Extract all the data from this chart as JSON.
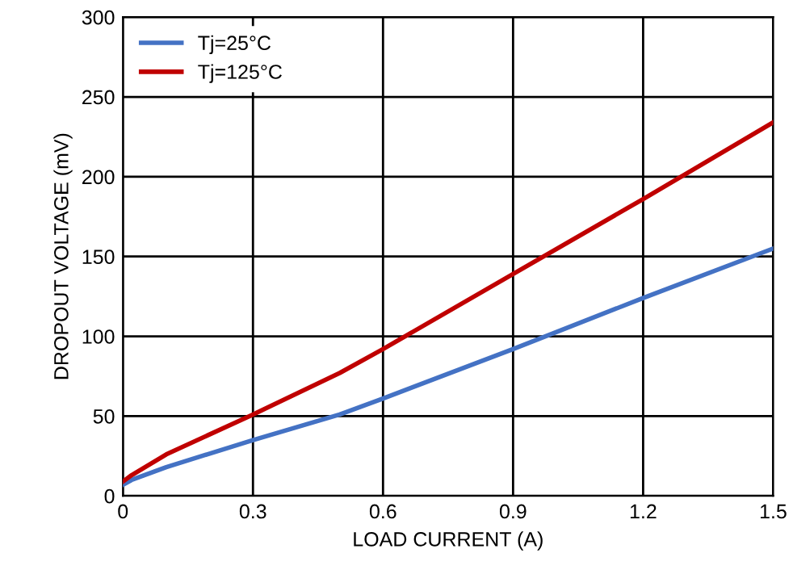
{
  "chart_data": {
    "type": "line",
    "xlabel": "LOAD CURRENT (A)",
    "ylabel": "DROPOUT VOLTAGE (mV)",
    "series": [
      {
        "name": "Tj=25°C",
        "color": "#4472c4",
        "x": [
          0,
          0.02,
          0.1,
          0.3,
          0.5,
          0.6,
          0.9,
          1.2,
          1.5
        ],
        "values": [
          7,
          10,
          18,
          35,
          51,
          61,
          92,
          124,
          155
        ]
      },
      {
        "name": "Tj=125°C",
        "color": "#c00000",
        "x": [
          0,
          0.02,
          0.1,
          0.3,
          0.5,
          0.6,
          0.9,
          1.2,
          1.5
        ],
        "values": [
          9,
          13,
          26,
          51,
          77,
          92,
          139,
          186,
          234
        ]
      }
    ],
    "xlim": [
      0,
      1.5
    ],
    "xticks": [
      0,
      0.3,
      0.6,
      0.9,
      1.2,
      1.5
    ],
    "ylim": [
      0,
      300
    ],
    "yticks": [
      0,
      50,
      100,
      150,
      200,
      250,
      300
    ],
    "grid": true,
    "legend": "top left",
    "marker": "none",
    "line_style": "solid"
  }
}
